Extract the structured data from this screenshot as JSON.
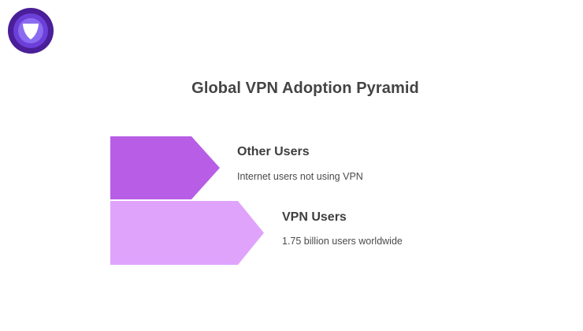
{
  "logo": {
    "icon": "shield-icon",
    "colors": {
      "outer": "#4a1f99",
      "middle": "#6c3fd9",
      "inner": "#8b6cf0",
      "mark": "#ffffff"
    }
  },
  "title": "Global VPN Adoption Pyramid",
  "tiers": [
    {
      "title": "Other Users",
      "description": "Internet users not using VPN",
      "color": "#b85ee6"
    },
    {
      "title": "VPN Users",
      "description": "1.75 billion users worldwide",
      "color": "#e0a3fb"
    }
  ]
}
